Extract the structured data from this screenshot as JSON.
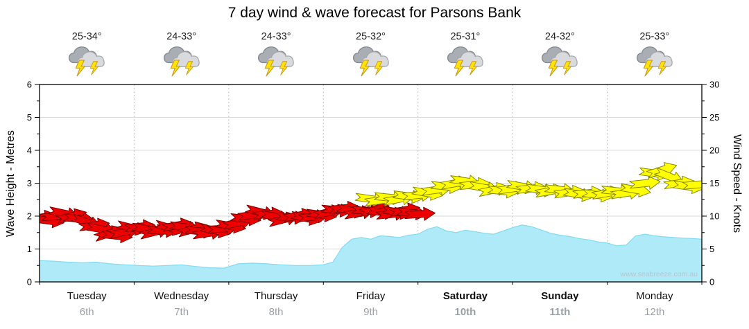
{
  "title": "7 day wind & wave forecast for Parsons Bank",
  "watermark": "www.seabreeze.com.au",
  "days": [
    {
      "name": "Tuesday",
      "date": "6th",
      "temp": "25-34°",
      "bold": false,
      "icon": "storm-icon"
    },
    {
      "name": "Wednesday",
      "date": "7th",
      "temp": "24-33°",
      "bold": false,
      "icon": "storm-icon"
    },
    {
      "name": "Thursday",
      "date": "8th",
      "temp": "24-33°",
      "bold": false,
      "icon": "storm-icon"
    },
    {
      "name": "Friday",
      "date": "9th",
      "temp": "25-32°",
      "bold": false,
      "icon": "storm-icon"
    },
    {
      "name": "Saturday",
      "date": "10th",
      "temp": "25-31°",
      "bold": true,
      "icon": "storm-icon"
    },
    {
      "name": "Sunday",
      "date": "11th",
      "temp": "24-32°",
      "bold": true,
      "icon": "storm-icon"
    },
    {
      "name": "Monday",
      "date": "12th",
      "temp": "25-33°",
      "bold": false,
      "icon": "storm-icon"
    }
  ],
  "axes": {
    "left_label": "Wave Height - Metres",
    "right_label": "Wind Speed - Knots",
    "left_ticks": [
      0,
      1,
      2,
      3,
      4,
      5,
      6
    ],
    "right_ticks": [
      0,
      5,
      10,
      15,
      20,
      25,
      30
    ]
  },
  "colors": {
    "wave_fill": "#aeeaf8",
    "wave_stroke": "#82dbf0",
    "arrow_low_fill": "#ee0000",
    "arrow_low_stroke": "#7d0000",
    "arrow_high_fill": "#ffff00",
    "arrow_high_stroke": "#8a8a00",
    "grid_line": "#d9d9d9",
    "day_line": "#c3c3c3",
    "frame": "#000000",
    "watermark_color": "#b9c5cc",
    "tick_text": "#000000"
  },
  "chart_data": {
    "type": "area",
    "title": "7 day wind & wave forecast for Parsons Bank",
    "x_unit": "days",
    "x_range": [
      0,
      7
    ],
    "grid": true,
    "left_axis": {
      "label": "Wave Height - Metres",
      "range": [
        0,
        6
      ],
      "ticks": [
        0,
        1,
        2,
        3,
        4,
        5,
        6
      ]
    },
    "right_axis": {
      "label": "Wind Speed - Knots",
      "range": [
        0,
        30
      ],
      "ticks": [
        0,
        5,
        10,
        15,
        20,
        25,
        30
      ]
    },
    "series": [
      {
        "name": "Wave Height (m)",
        "type": "area",
        "axis": "left",
        "x": [
          0,
          0.15,
          0.3,
          0.45,
          0.6,
          0.75,
          0.9,
          1.05,
          1.2,
          1.35,
          1.5,
          1.65,
          1.8,
          1.95,
          2.1,
          2.25,
          2.4,
          2.55,
          2.7,
          2.85,
          3.0,
          3.1,
          3.2,
          3.3,
          3.4,
          3.5,
          3.6,
          3.7,
          3.8,
          3.9,
          4.0,
          4.1,
          4.2,
          4.3,
          4.4,
          4.5,
          4.6,
          4.7,
          4.8,
          4.9,
          5.0,
          5.1,
          5.2,
          5.3,
          5.4,
          5.5,
          5.6,
          5.7,
          5.8,
          5.9,
          6.0,
          6.1,
          6.2,
          6.3,
          6.4,
          6.5,
          6.6,
          6.7,
          6.8,
          6.9,
          7.0
        ],
        "values": [
          0.65,
          0.63,
          0.6,
          0.58,
          0.6,
          0.55,
          0.52,
          0.5,
          0.48,
          0.5,
          0.52,
          0.47,
          0.43,
          0.42,
          0.55,
          0.57,
          0.55,
          0.52,
          0.5,
          0.5,
          0.52,
          0.6,
          1.05,
          1.3,
          1.35,
          1.3,
          1.4,
          1.38,
          1.35,
          1.42,
          1.45,
          1.6,
          1.68,
          1.55,
          1.5,
          1.57,
          1.53,
          1.48,
          1.45,
          1.55,
          1.65,
          1.73,
          1.68,
          1.58,
          1.48,
          1.42,
          1.38,
          1.32,
          1.28,
          1.22,
          1.18,
          1.1,
          1.12,
          1.4,
          1.45,
          1.4,
          1.37,
          1.35,
          1.33,
          1.32,
          1.3
        ]
      },
      {
        "name": "Wind Speed (knots)",
        "type": "wind-arrows",
        "axis": "right",
        "color_rule": {
          "threshold_knots": 12,
          "below": "arrow_low",
          "at_or_above": "arrow_high"
        },
        "points": [
          [
            0.02,
            9.8,
            -10
          ],
          [
            0.1,
            9.3,
            8
          ],
          [
            0.18,
            10.0,
            -5
          ],
          [
            0.26,
            10.4,
            12
          ],
          [
            0.34,
            10.0,
            -15
          ],
          [
            0.42,
            9.6,
            5
          ],
          [
            0.5,
            9.1,
            18
          ],
          [
            0.58,
            8.6,
            -8
          ],
          [
            0.66,
            8.0,
            10
          ],
          [
            0.74,
            7.4,
            -18
          ],
          [
            0.82,
            7.0,
            6
          ],
          [
            0.9,
            7.6,
            -12
          ],
          [
            0.98,
            8.2,
            14
          ],
          [
            1.06,
            8.4,
            -6
          ],
          [
            1.14,
            8.0,
            10
          ],
          [
            1.22,
            7.6,
            -14
          ],
          [
            1.3,
            7.8,
            4
          ],
          [
            1.38,
            8.2,
            16
          ],
          [
            1.46,
            8.6,
            -10
          ],
          [
            1.54,
            8.3,
            8
          ],
          [
            1.62,
            8.0,
            -16
          ],
          [
            1.7,
            7.7,
            6
          ],
          [
            1.78,
            7.4,
            -8
          ],
          [
            1.86,
            7.8,
            12
          ],
          [
            1.94,
            8.1,
            -4
          ],
          [
            2.02,
            8.5,
            10
          ],
          [
            2.1,
            9.0,
            -12
          ],
          [
            2.18,
            9.6,
            6
          ],
          [
            2.26,
            10.2,
            -8
          ],
          [
            2.34,
            10.6,
            14
          ],
          [
            2.42,
            10.3,
            -6
          ],
          [
            2.5,
            9.9,
            10
          ],
          [
            2.58,
            9.5,
            -14
          ],
          [
            2.66,
            9.8,
            4
          ],
          [
            2.74,
            10.1,
            -10
          ],
          [
            2.82,
            9.7,
            12
          ],
          [
            2.9,
            9.9,
            -6
          ],
          [
            2.98,
            10.2,
            8
          ],
          [
            3.06,
            10.6,
            -12
          ],
          [
            3.14,
            10.9,
            6
          ],
          [
            3.22,
            11.2,
            -6
          ],
          [
            3.3,
            10.8,
            12
          ],
          [
            3.38,
            10.5,
            -10
          ],
          [
            3.46,
            10.8,
            4
          ],
          [
            3.5,
            12.6,
            8
          ],
          [
            3.54,
            11.0,
            -14
          ],
          [
            3.6,
            12.4,
            -8
          ],
          [
            3.62,
            10.6,
            8
          ],
          [
            3.7,
            12.8,
            6
          ],
          [
            3.72,
            10.3,
            -6
          ],
          [
            3.78,
            10.6,
            10
          ],
          [
            3.8,
            12.6,
            -10
          ],
          [
            3.86,
            10.9,
            -10
          ],
          [
            3.9,
            13.0,
            8
          ],
          [
            3.94,
            10.5,
            6
          ],
          [
            4.0,
            13.2,
            -6
          ],
          [
            4.02,
            10.3,
            -4
          ],
          [
            4.1,
            13.5,
            10
          ],
          [
            4.2,
            14.0,
            -8
          ],
          [
            4.3,
            14.5,
            6
          ],
          [
            4.4,
            15.0,
            -10
          ],
          [
            4.5,
            15.3,
            8
          ],
          [
            4.6,
            14.8,
            -6
          ],
          [
            4.7,
            14.3,
            10
          ],
          [
            4.8,
            14.0,
            -12
          ],
          [
            4.9,
            13.8,
            6
          ],
          [
            5.0,
            14.2,
            -8
          ],
          [
            5.1,
            14.5,
            10
          ],
          [
            5.2,
            14.2,
            -6
          ],
          [
            5.3,
            14.0,
            8
          ],
          [
            5.4,
            13.8,
            -10
          ],
          [
            5.5,
            14.0,
            6
          ],
          [
            5.6,
            13.6,
            -8
          ],
          [
            5.7,
            13.3,
            10
          ],
          [
            5.8,
            13.5,
            -6
          ],
          [
            5.9,
            13.2,
            8
          ],
          [
            6.0,
            13.5,
            -10
          ],
          [
            6.1,
            13.8,
            6
          ],
          [
            6.2,
            13.5,
            -8
          ],
          [
            6.3,
            14.0,
            10
          ],
          [
            6.4,
            15.0,
            -6
          ],
          [
            6.5,
            16.5,
            8
          ],
          [
            6.58,
            17.0,
            -18
          ],
          [
            6.66,
            16.0,
            22
          ],
          [
            6.76,
            15.0,
            -8
          ],
          [
            6.86,
            14.5,
            8
          ],
          [
            6.96,
            14.8,
            -5
          ]
        ]
      }
    ]
  }
}
